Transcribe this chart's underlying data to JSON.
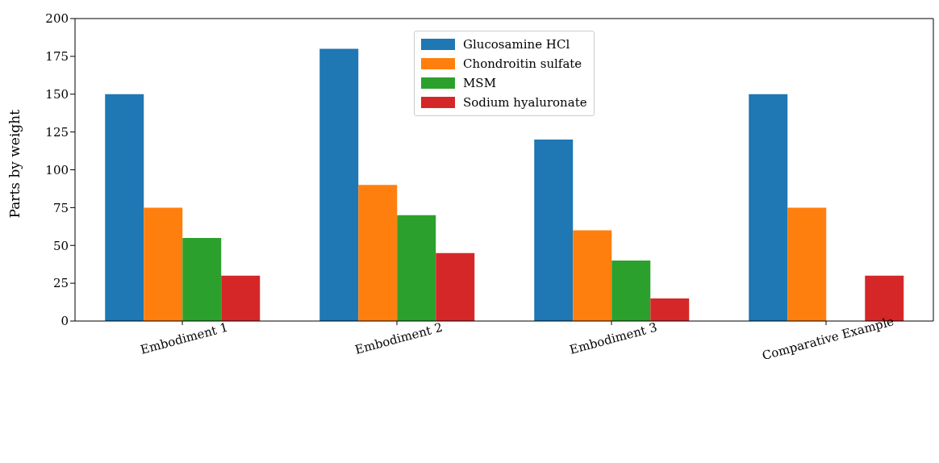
{
  "chart_data": {
    "type": "bar",
    "ylabel": "Parts by weight",
    "categories": [
      "Embodiment 1",
      "Embodiment 2",
      "Embodiment 3",
      "Comparative Example"
    ],
    "series": [
      {
        "name": "Glucosamine HCl",
        "color": "#1f77b4",
        "values": [
          150,
          180,
          120,
          150
        ]
      },
      {
        "name": "Chondroitin sulfate",
        "color": "#ff7f0e",
        "values": [
          75,
          90,
          60,
          75
        ]
      },
      {
        "name": "MSM",
        "color": "#2ca02c",
        "values": [
          55,
          70,
          40,
          0
        ]
      },
      {
        "name": "Sodium hyaluronate",
        "color": "#d62728",
        "values": [
          30,
          45,
          15,
          30
        ]
      }
    ],
    "ylim": [
      0,
      200
    ],
    "yticks": [
      0,
      25,
      50,
      75,
      100,
      125,
      150,
      175,
      200
    ],
    "grid": false,
    "legend": "top"
  }
}
